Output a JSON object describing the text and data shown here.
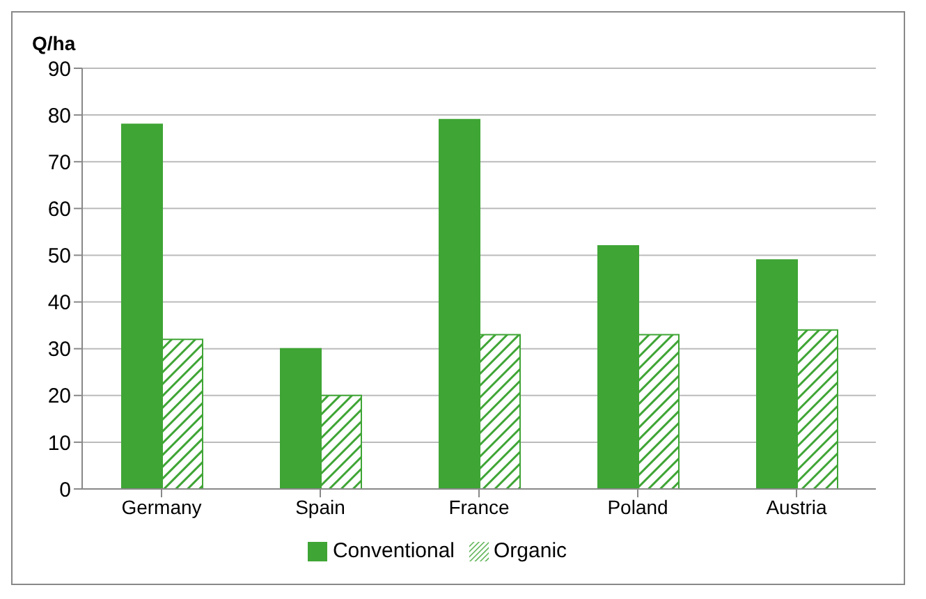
{
  "chart_data": {
    "type": "bar",
    "ylabel": "Q/ha",
    "categories": [
      "Germany",
      "Spain",
      "France",
      "Poland",
      "Austria"
    ],
    "series": [
      {
        "name": "Conventional",
        "color": "#3fa535",
        "values": [
          78,
          30,
          79,
          52,
          49
        ]
      },
      {
        "name": "Organic",
        "color": "#3fa535",
        "values": [
          32,
          20,
          33,
          33,
          34
        ]
      }
    ],
    "ylim": [
      0,
      90
    ],
    "yticks": [
      0,
      10,
      20,
      30,
      40,
      50,
      60,
      70,
      80,
      90
    ],
    "grid": "y",
    "legend": "bottom"
  }
}
